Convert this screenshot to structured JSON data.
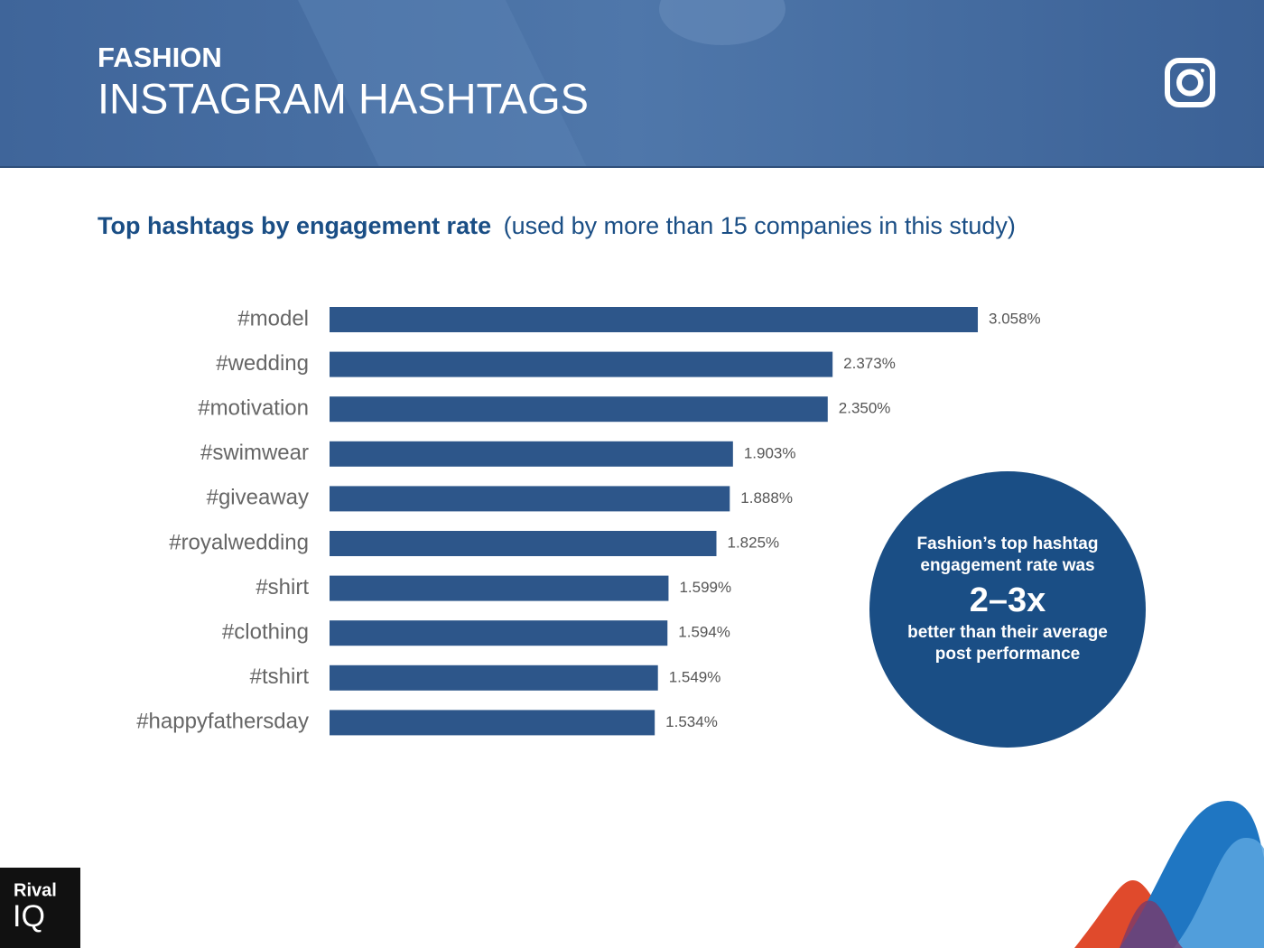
{
  "header": {
    "kicker": "FASHION",
    "title": "INSTAGRAM HASHTAGS"
  },
  "chart_data": {
    "type": "bar",
    "orientation": "horizontal",
    "title": "Top hashtags by engagement rate",
    "subtitle": "(used by more than 15 companies in this study)",
    "categories": [
      "#model",
      "#wedding",
      "#motivation",
      "#swimwear",
      "#giveaway",
      "#royalwedding",
      "#shirt",
      "#clothing",
      "#tshirt",
      "#happyfathersday"
    ],
    "values": [
      3.058,
      2.373,
      2.35,
      1.903,
      1.888,
      1.825,
      1.599,
      1.594,
      1.549,
      1.534
    ],
    "value_labels": [
      "3.058%",
      "2.373%",
      "2.350%",
      "1.903%",
      "1.888%",
      "1.825%",
      "1.599%",
      "1.594%",
      "1.549%",
      "1.534%"
    ],
    "color": "#2d568a"
  },
  "callout": {
    "top_lines": [
      "Fashion’s top hashtag",
      "engagement rate was"
    ],
    "highlight": "2–3x",
    "bottom_lines": [
      "better than their average",
      "post performance"
    ]
  },
  "logo": {
    "line1": "Rival",
    "line2": "IQ"
  }
}
